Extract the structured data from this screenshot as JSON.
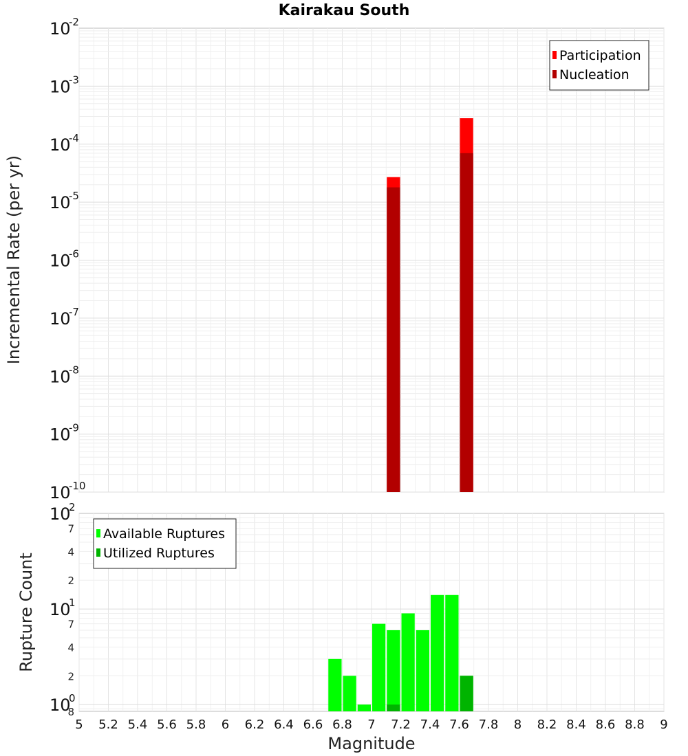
{
  "chart_data": [
    {
      "type": "bar",
      "title": "Kairakau South",
      "ylabel": "Incremental Rate (per yr)",
      "yscale": "log",
      "ylim": [
        1e-10,
        0.01
      ],
      "xlim": [
        5,
        9
      ],
      "bar_width": 0.1,
      "legend": "top-right",
      "grid": true,
      "y_decade_labels": [
        {
          "base": "10",
          "exp": "-10",
          "value": 1e-10
        },
        {
          "base": "10",
          "exp": "-9",
          "value": 1e-09
        },
        {
          "base": "10",
          "exp": "-8",
          "value": 1e-08
        },
        {
          "base": "10",
          "exp": "-7",
          "value": 1e-07
        },
        {
          "base": "10",
          "exp": "-6",
          "value": 1e-06
        },
        {
          "base": "10",
          "exp": "-5",
          "value": 1e-05
        },
        {
          "base": "10",
          "exp": "-4",
          "value": 0.0001
        },
        {
          "base": "10",
          "exp": "-3",
          "value": 0.001
        },
        {
          "base": "10",
          "exp": "-2",
          "value": 0.01
        }
      ],
      "series": [
        {
          "name": "Participation",
          "color": "#ff0000",
          "x": [
            7.15,
            7.65
          ],
          "values": [
            2.7e-05,
            0.00028
          ]
        },
        {
          "name": "Nucleation",
          "color": "#b20000",
          "x": [
            7.15,
            7.65
          ],
          "values": [
            1.8e-05,
            7e-05
          ]
        }
      ]
    },
    {
      "type": "bar",
      "xlabel": "Magnitude",
      "ylabel": "Rupture Count",
      "yscale": "log",
      "ylim": [
        0.85,
        100
      ],
      "xlim": [
        5,
        9
      ],
      "bar_width": 0.1,
      "legend": "top-left",
      "grid": true,
      "x_ticks": [
        "5",
        "5.2",
        "5.4",
        "5.6",
        "5.8",
        "6",
        "6.2",
        "6.4",
        "6.6",
        "6.8",
        "7",
        "7.2",
        "7.4",
        "7.6",
        "7.8",
        "8",
        "8.2",
        "8.4",
        "8.6",
        "8.8",
        "9"
      ],
      "y_decade_labels": [
        {
          "base": "10",
          "exp": "0",
          "value": 1
        },
        {
          "base": "10",
          "exp": "1",
          "value": 10
        },
        {
          "base": "10",
          "exp": "2",
          "value": 100
        }
      ],
      "y_minor_labels": [
        {
          "label": "8",
          "value": 0.85
        },
        {
          "label": "2",
          "value": 2
        },
        {
          "label": "4",
          "value": 4
        },
        {
          "label": "7",
          "value": 7
        },
        {
          "label": "2",
          "value": 20
        },
        {
          "label": "4",
          "value": 40
        },
        {
          "label": "7",
          "value": 70
        }
      ],
      "series": [
        {
          "name": "Available Ruptures",
          "color": "#00ff00",
          "x": [
            6.75,
            6.85,
            6.95,
            7.05,
            7.15,
            7.25,
            7.35,
            7.45,
            7.55,
            7.65
          ],
          "values": [
            3,
            2,
            1,
            7,
            6,
            9,
            6,
            14,
            14,
            2
          ]
        },
        {
          "name": "Utilized Ruptures",
          "color": "#00b400",
          "x": [
            7.15,
            7.65
          ],
          "values": [
            1,
            2
          ]
        }
      ]
    }
  ]
}
